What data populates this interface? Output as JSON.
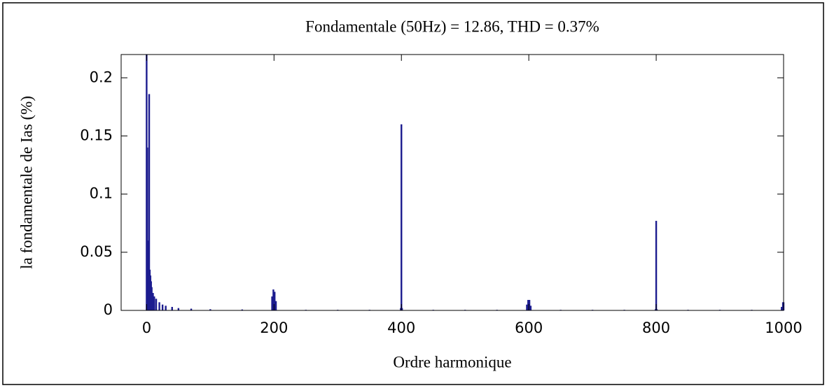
{
  "chart_data": {
    "type": "bar",
    "title": "Fondamentale (50Hz) = 12.86, THD = 0.37%",
    "xlabel": "Ordre harmonique",
    "ylabel": "la fondamentale de Ias (%)",
    "x": [
      0,
      1,
      2,
      3,
      4,
      5,
      6,
      7,
      8,
      10,
      12,
      15,
      20,
      25,
      30,
      40,
      50,
      70,
      100,
      150,
      197,
      199,
      201,
      203,
      250,
      300,
      350,
      399,
      400,
      401,
      450,
      500,
      550,
      597,
      599,
      601,
      603,
      650,
      700,
      750,
      799,
      800,
      801,
      850,
      900,
      950,
      997,
      999,
      1000
    ],
    "values": [
      0.22,
      0.14,
      0.06,
      0.04,
      0.186,
      0.035,
      0.03,
      0.025,
      0.02,
      0.015,
      0.012,
      0.01,
      0.007,
      0.005,
      0.004,
      0.003,
      0.002,
      0.0015,
      0.001,
      0.0008,
      0.012,
      0.018,
      0.016,
      0.008,
      0.0005,
      0.0005,
      0.0005,
      0.002,
      0.16,
      0.002,
      0.0005,
      0.0005,
      0.0005,
      0.005,
      0.009,
      0.009,
      0.004,
      0.0005,
      0.0005,
      0.0005,
      0.001,
      0.077,
      0.001,
      0.0005,
      0.0005,
      0.0005,
      0.003,
      0.007,
      0.007
    ],
    "color": "#1c1c8f",
    "xlim": [
      -40,
      1000
    ],
    "ylim": [
      0,
      0.22
    ],
    "xticks": [
      0,
      200,
      400,
      600,
      800,
      1000
    ],
    "yticks": [
      0,
      0.05,
      0.1,
      0.15,
      0.2
    ]
  }
}
